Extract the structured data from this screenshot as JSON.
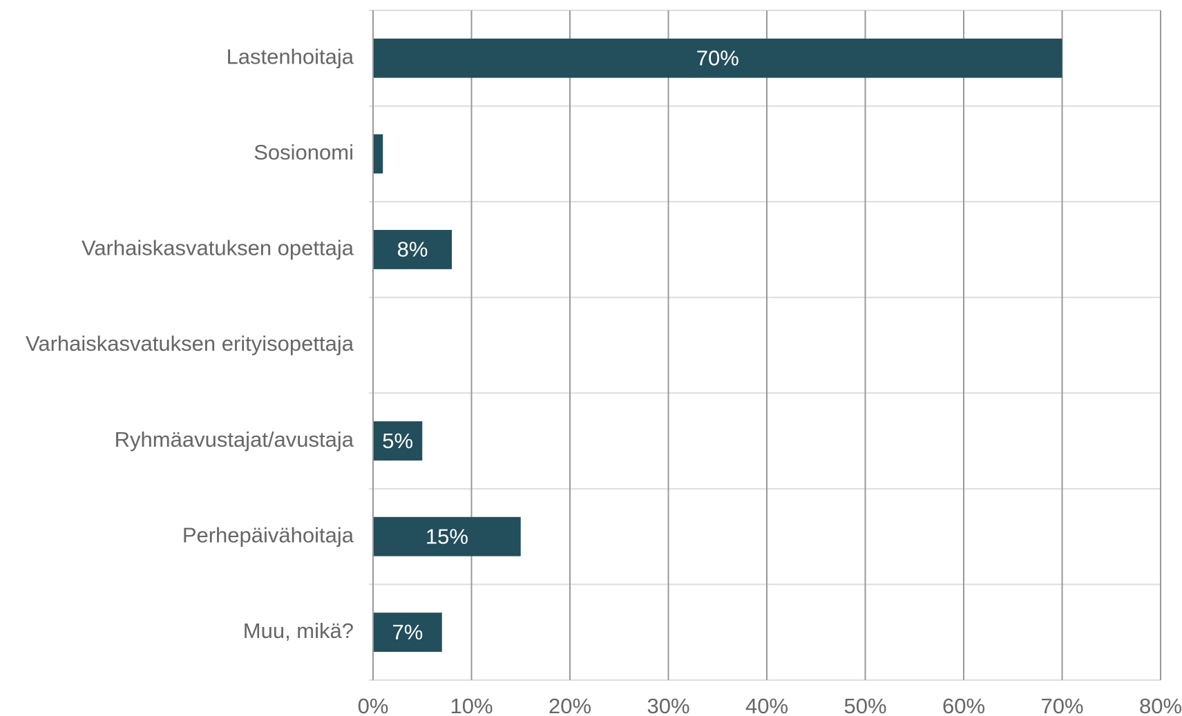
{
  "chart_data": {
    "type": "barh",
    "categories": [
      "Lastenhoitaja",
      "Sosionomi",
      "Varhaiskasvatuksen opettaja",
      "Varhaiskasvatuksen erityisopettaja",
      "Ryhmäavustajat/avustaja",
      "Perhepäivähoitaja",
      "Muu, mikä?"
    ],
    "values": [
      70,
      1,
      8,
      0,
      5,
      15,
      7
    ],
    "value_labels": [
      "70%",
      null,
      "8%",
      null,
      "5%",
      "15%",
      "7%"
    ],
    "color": "#234e5c",
    "xlim": [
      0,
      80
    ],
    "xticks": [
      {
        "value": 0,
        "label": "0%"
      },
      {
        "value": 10,
        "label": "10%"
      },
      {
        "value": 20,
        "label": "20%"
      },
      {
        "value": 30,
        "label": "30%"
      },
      {
        "value": 40,
        "label": "40%"
      },
      {
        "value": 50,
        "label": "50%"
      },
      {
        "value": 60,
        "label": "60%"
      },
      {
        "value": 70,
        "label": "70%"
      },
      {
        "value": 80,
        "label": "80%"
      }
    ],
    "grid": true
  }
}
